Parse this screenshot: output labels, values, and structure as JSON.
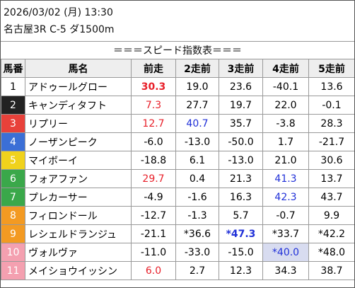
{
  "header": {
    "datetime": "2026/03/02 (月) 13:30",
    "race": "名古屋3R C-5 ダ1500m",
    "title": "＝＝＝スピード指数表＝＝＝"
  },
  "table": {
    "columns": [
      "馬番",
      "馬名",
      "前走",
      "2走前",
      "3走前",
      "4走前",
      "5走前"
    ],
    "rows": [
      [
        "1",
        "アドゥールグロー",
        "30.3",
        "19.0",
        "23.6",
        "-40.1",
        "13.6"
      ],
      [
        "2",
        "キャンディタフト",
        "7.3",
        "27.7",
        "19.7",
        "22.0",
        "-0.1"
      ],
      [
        "3",
        "リプリー",
        "12.7",
        "40.7",
        "35.7",
        "-3.8",
        "28.3"
      ],
      [
        "4",
        "ノーザンピーク",
        "-6.0",
        "-13.0",
        "-50.0",
        "1.7",
        "-21.7"
      ],
      [
        "5",
        "マイボーイ",
        "-18.8",
        "6.1",
        "-13.0",
        "21.0",
        "30.6"
      ],
      [
        "6",
        "フォアファン",
        "29.7",
        "0.4",
        "21.3",
        "41.3",
        "13.7"
      ],
      [
        "7",
        "プレカーサー",
        "-4.9",
        "-1.6",
        "16.3",
        "42.3",
        "43.7"
      ],
      [
        "8",
        "フィロンドール",
        "-12.7",
        "-1.3",
        "5.7",
        "-0.7",
        "9.9"
      ],
      [
        "9",
        "レシェルドランジュ",
        "-21.1",
        "*36.6",
        "*47.3",
        "*33.7",
        "*42.2"
      ],
      [
        "10",
        "ヴォルヴァ",
        "-11.0",
        "-33.0",
        "-15.0",
        "*40.0",
        "*48.0"
      ],
      [
        "11",
        "メイショウイッシン",
        "6.0",
        "2.7",
        "12.3",
        "34.3",
        "38.7"
      ]
    ]
  }
}
